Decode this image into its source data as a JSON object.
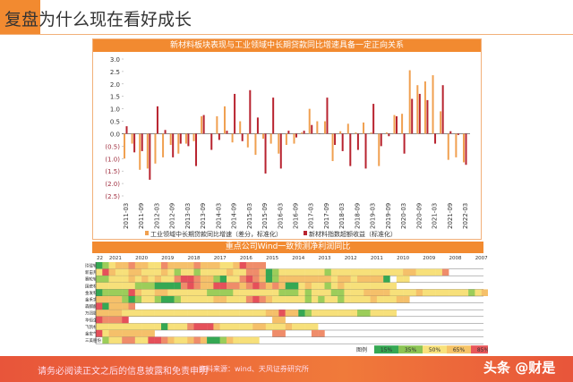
{
  "slide": {
    "title": "复盘为什么现在看好成长",
    "footer_disclaimer": "请务必阅读正文之后的信息披露和免责申明",
    "footer_source": "资料来源：wind、天风证券研究所",
    "watermark": "头条 @财是"
  },
  "chart_data": [
    {
      "type": "bar",
      "title": "新材料板块表现与工业领域中长期贷款同比增速具备一定正向关系",
      "ylim": [
        -2.5,
        3.0
      ],
      "yticks": [
        "3.0",
        "2.5",
        "2.0",
        "1.5",
        "1.0",
        "0.5",
        "0.0",
        "(0.5)",
        "(1.0)",
        "(1.5)",
        "(2.0)",
        "(2.5)"
      ],
      "xtick_labels": [
        "2011-03",
        "2011-09",
        "2012-03",
        "2012-09",
        "2013-03",
        "2013-09",
        "2014-03",
        "2014-09",
        "2015-03",
        "2015-09",
        "2016-03",
        "2016-09",
        "2017-03",
        "2017-09",
        "2018-03",
        "2018-09",
        "2019-03",
        "2019-09",
        "2020-03",
        "2020-09",
        "2021-03",
        "2021-09",
        "2022-03"
      ],
      "legend_position": "bottom",
      "series": [
        {
          "name": "工业领域中长期贷款同比增速（差分，标准化）",
          "color": "#f0a050",
          "values": [
            -1.0,
            -0.4,
            -1.45,
            -1.4,
            -1.2,
            -0.95,
            -0.45,
            -0.8,
            -0.4,
            -0.3,
            0.7,
            0.0,
            0.7,
            1.1,
            -0.35,
            0.5,
            -0.55,
            -0.85,
            -0.2,
            -0.4,
            -0.8,
            -0.45,
            -0.4,
            0.05,
            1.0,
            0.5,
            0.5,
            -1.1,
            0.1,
            0.4,
            0.05,
            0.45,
            0.05,
            -1.3,
            0.05,
            0.75,
            0.8,
            2.55,
            1.95,
            2.1,
            2.35,
            0.9,
            -1.05,
            -0.95,
            -1.15
          ]
        },
        {
          "name": "新材料指数超额收益（标准化）",
          "color": "#b8232f",
          "values": [
            0.3,
            -0.75,
            -0.7,
            -1.85,
            1.1,
            0.15,
            -0.95,
            -0.4,
            -0.5,
            -1.3,
            0.75,
            -0.65,
            -0.25,
            0.12,
            1.6,
            -0.3,
            1.75,
            0.65,
            -1.6,
            1.45,
            -1.4,
            0.12,
            -0.15,
            0.12,
            0.35,
            0.0,
            1.45,
            -0.45,
            -0.7,
            -1.3,
            -0.65,
            -1.4,
            1.2,
            -0.5,
            -0.1,
            0.7,
            -0.8,
            1.4,
            1.6,
            1.35,
            -0.4,
            1.95,
            0.1,
            -0.05,
            -1.25
          ]
        }
      ]
    },
    {
      "type": "heatmap",
      "title": "重点公司Wind一致预测净利润同比",
      "columns": [
        "22",
        "2021",
        "2020",
        "2019",
        "2018",
        "2017",
        "2016",
        "2015",
        "2014",
        "2013",
        "2012",
        "2011",
        "2010",
        "2009",
        "2008",
        "2007"
      ],
      "rows": [
        {
          "label": "玲珑轮胎",
          "cells": [
            1,
            2,
            3,
            4,
            4,
            5,
            4,
            4,
            3,
            3,
            5,
            4,
            4,
            4,
            4,
            5,
            4,
            4,
            4,
            3,
            3,
            4,
            6,
            5,
            5,
            5
          ]
        },
        {
          "label": "新宙邦",
          "cells": [
            3,
            6,
            4,
            3,
            3,
            4,
            4,
            3,
            3,
            3,
            4,
            3,
            2,
            3,
            3,
            2,
            3,
            3,
            3,
            3,
            4,
            3,
            3,
            5,
            5,
            4,
            1,
            2,
            3,
            3,
            3,
            3,
            3,
            3,
            3,
            2,
            3,
            3,
            3,
            3,
            3,
            3,
            3,
            3,
            3,
            3,
            3,
            4,
            4,
            3,
            3,
            3,
            3,
            5
          ]
        },
        {
          "label": "赛轮轮胎",
          "cells": [
            2,
            2,
            3,
            3,
            3,
            4,
            3,
            4,
            3,
            4,
            3,
            3,
            5,
            6,
            6,
            5,
            4,
            4,
            2,
            1,
            3,
            3,
            5,
            6,
            5,
            4,
            1,
            2,
            4,
            4,
            4,
            4,
            4,
            4,
            4,
            4,
            3,
            4,
            4,
            3,
            4,
            4,
            4,
            4,
            1,
            0,
            3,
            3
          ]
        },
        {
          "label": "国瓷材料",
          "cells": [
            3,
            3,
            3,
            3,
            3,
            3,
            2,
            2,
            2,
            1,
            1,
            1,
            1,
            5,
            6,
            5,
            4,
            4,
            6,
            6,
            5,
            5,
            4,
            5,
            6,
            5,
            4,
            5,
            4,
            1,
            1,
            3,
            4,
            3,
            3,
            2,
            3,
            4,
            3,
            3,
            3,
            3,
            3,
            3,
            3,
            3
          ]
        },
        {
          "label": "金发科技",
          "cells": [
            1,
            2,
            2,
            2,
            2,
            6,
            4,
            3,
            3,
            4,
            4,
            3,
            3,
            3,
            3,
            3,
            3,
            2,
            2,
            2,
            2,
            3,
            3,
            3,
            3,
            3,
            3,
            3,
            2,
            2,
            2,
            3,
            2,
            3,
            3,
            3,
            2,
            2,
            3,
            3,
            3,
            4,
            4,
            4,
            4,
            3,
            3,
            3,
            3,
            4,
            3,
            3,
            3,
            3,
            3,
            3,
            3,
            2,
            3,
            4
          ]
        },
        {
          "label": "金禾实业",
          "cells": [
            4,
            4,
            4,
            4,
            2,
            1,
            2,
            3,
            3,
            2,
            1,
            1,
            2,
            3,
            3,
            3,
            3,
            3,
            4,
            4,
            3,
            3,
            3,
            5,
            6,
            5,
            4,
            3,
            3,
            3,
            3,
            3,
            2,
            3,
            2,
            3,
            3,
            2,
            3,
            3,
            3,
            3,
            4,
            3,
            3,
            3,
            4,
            4
          ]
        },
        {
          "label": "森麒麟",
          "cells": [
            6,
            1,
            4,
            4,
            4,
            5
          ]
        },
        {
          "label": "万润股份",
          "cells": [
            4,
            4,
            4,
            4,
            3,
            3,
            3,
            3,
            3,
            3,
            3,
            3,
            3,
            3,
            3,
            3,
            3,
            3,
            3,
            3,
            3,
            3,
            3,
            3,
            3,
            3,
            4,
            4,
            6,
            4,
            4,
            1,
            2,
            3,
            3,
            3,
            3,
            3,
            3,
            3,
            2,
            2,
            3,
            3,
            3,
            3
          ]
        },
        {
          "label": "华恒生物",
          "cells": [
            6,
            5,
            5,
            5,
            6,
            0,
            0,
            0,
            0,
            0,
            0,
            0,
            0,
            0,
            0,
            0,
            0,
            0,
            0,
            0,
            0,
            0,
            0,
            0,
            0,
            0,
            0,
            4,
            4
          ]
        },
        {
          "label": "飞凯材料",
          "cells": [
            3,
            3,
            3,
            3,
            3,
            3,
            3,
            3,
            3,
            3,
            1,
            3,
            3,
            3,
            5,
            6,
            6,
            6,
            4,
            3,
            3,
            3,
            3,
            3,
            4,
            4,
            3,
            3,
            3,
            4,
            3,
            3,
            3,
            3
          ]
        },
        {
          "label": "金宏气体",
          "cells": [
            6,
            3,
            4,
            4,
            4,
            4,
            4,
            4,
            4,
            0,
            0,
            0,
            0,
            0,
            0,
            0,
            0,
            0,
            0,
            0,
            0,
            0,
            0,
            0,
            0,
            0,
            0,
            5,
            5,
            0,
            0,
            0,
            0,
            5,
            5
          ]
        },
        {
          "label": "三美股份",
          "cells": [
            0,
            2,
            3,
            3,
            5,
            5,
            3,
            3,
            6,
            6,
            5,
            4,
            3,
            3,
            4,
            5,
            4,
            1,
            1,
            2,
            4,
            3,
            3,
            3,
            3
          ]
        }
      ],
      "legend": {
        "label": "图例",
        "levels": [
          "15%",
          "35%",
          "50%",
          "65%",
          "85%"
        ],
        "colors": [
          "#35a853",
          "#8cc454",
          "#f8e27c",
          "#f6c468",
          "#e8575a"
        ]
      },
      "cell_colors": {
        "1": "#35a853",
        "2": "#9ccd5a",
        "3": "#f7e07a",
        "4": "#f5c06a",
        "5": "#ef8c6a",
        "6": "#e5505a"
      }
    }
  ]
}
